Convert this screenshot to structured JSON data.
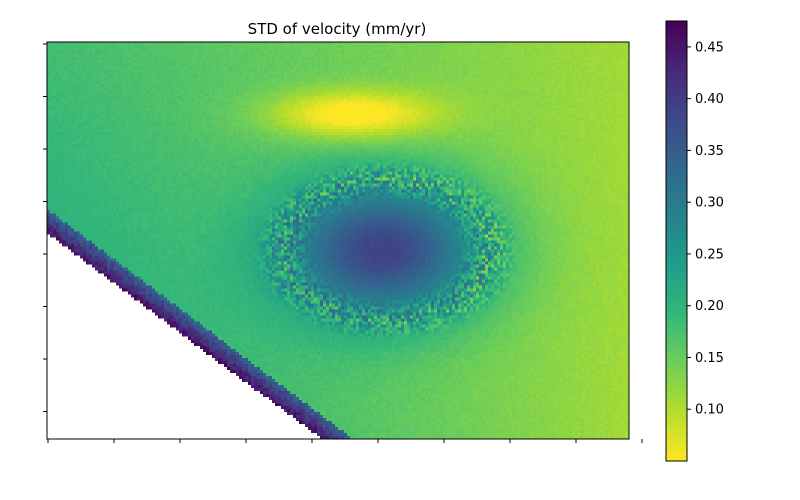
{
  "chart_data": {
    "type": "heatmap",
    "title": "STD of velocity (mm/yr)",
    "xlabel": "",
    "ylabel": "",
    "x_tick_labels": [
      "",
      "",
      "",
      "",
      "",
      "",
      "",
      "",
      "",
      ""
    ],
    "y_tick_labels": [
      "",
      "",
      "",
      "",
      "",
      "",
      "",
      ""
    ],
    "colormap": "viridis_r",
    "colorbar": {
      "vmin": 0.05,
      "vmax": 0.475,
      "ticks": [
        0.1,
        0.15,
        0.2,
        0.25,
        0.3,
        0.35,
        0.4,
        0.45
      ],
      "tick_labels": [
        "0.10",
        "0.15",
        "0.20",
        "0.25",
        "0.30",
        "0.35",
        "0.40",
        "0.45"
      ],
      "stops": [
        "#fde725",
        "#b5de2b",
        "#6ece58",
        "#35b779",
        "#1f9e89",
        "#26828e",
        "#31688e",
        "#3e4989",
        "#482878",
        "#440154"
      ]
    },
    "field_features": {
      "background_std": 0.18,
      "high_std_center": 0.42,
      "low_std_top_band": 0.06,
      "edge_std_along_masked_region": 0.46,
      "masked_region": "lower-left (no data)"
    }
  }
}
